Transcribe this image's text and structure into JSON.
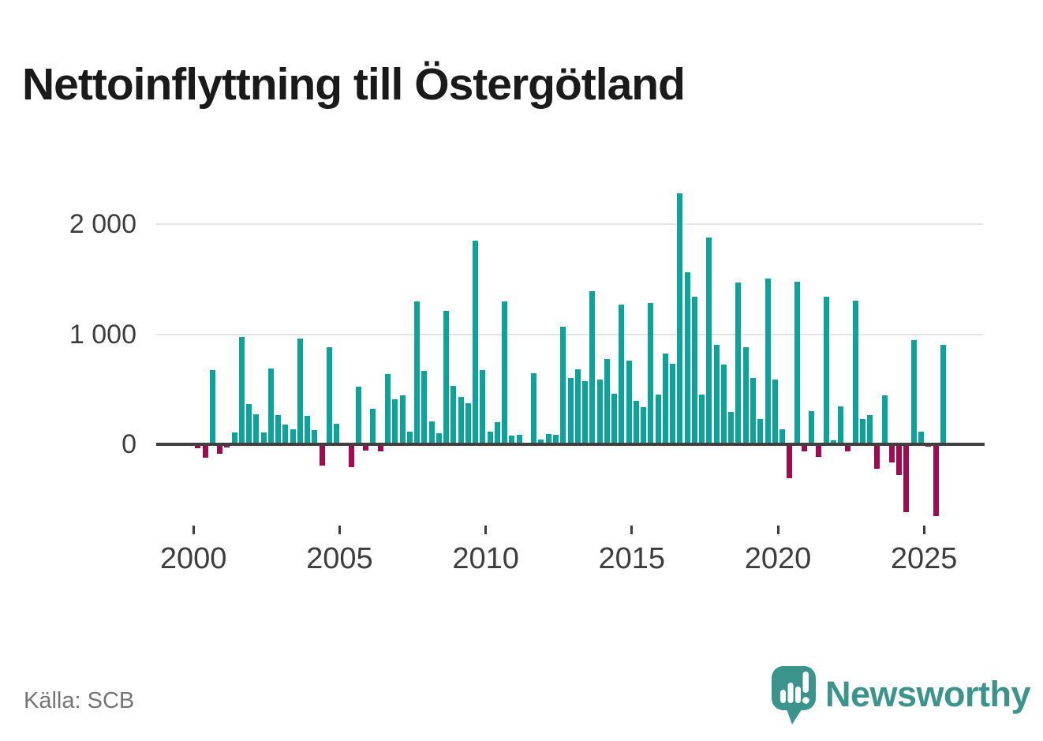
{
  "title": "Nettoinflyttning till Östergötland",
  "source": "Källa: SCB",
  "brand": {
    "name": "Newsworthy",
    "icon": "newsworthy-speech-bubble-chart-icon"
  },
  "colors": {
    "positive": "#0ca39a",
    "negative": "#a00b50",
    "grid": "#e4e4e4",
    "axis": "#3f3f3f",
    "tick": "#3c3c3c",
    "label": "#3d3d3d",
    "title": "#1a1a1a",
    "source_gray": "#757575",
    "brand_teal": "#3a948c",
    "background": "#ffffff"
  },
  "chart_data": {
    "type": "bar",
    "title": "Nettoinflyttning till Östergötland",
    "xlabel": "",
    "ylabel": "",
    "x_unit": "quarter",
    "grid": "horizontal",
    "legend": "none",
    "ylim": [
      -700,
      2400
    ],
    "y_ticks": [
      0,
      1000,
      2000
    ],
    "y_tick_labels": [
      "0",
      "1 000",
      "2 000"
    ],
    "x_tick_years": [
      2000,
      2005,
      2010,
      2015,
      2020,
      2025
    ],
    "x_tick_labels": [
      "2000",
      "2005",
      "2010",
      "2015",
      "2020",
      "2025"
    ],
    "quarters": [
      "2000Q1",
      "2000Q2",
      "2000Q3",
      "2000Q4",
      "2001Q1",
      "2001Q2",
      "2001Q3",
      "2001Q4",
      "2002Q1",
      "2002Q2",
      "2002Q3",
      "2002Q4",
      "2003Q1",
      "2003Q2",
      "2003Q3",
      "2003Q4",
      "2004Q1",
      "2004Q2",
      "2004Q3",
      "2004Q4",
      "2005Q1",
      "2005Q2",
      "2005Q3",
      "2005Q4",
      "2006Q1",
      "2006Q2",
      "2006Q3",
      "2006Q4",
      "2007Q1",
      "2007Q2",
      "2007Q3",
      "2007Q4",
      "2008Q1",
      "2008Q2",
      "2008Q3",
      "2008Q4",
      "2009Q1",
      "2009Q2",
      "2009Q3",
      "2009Q4",
      "2010Q1",
      "2010Q2",
      "2010Q3",
      "2010Q4",
      "2011Q1",
      "2011Q2",
      "2011Q3",
      "2011Q4",
      "2012Q1",
      "2012Q2",
      "2012Q3",
      "2012Q4",
      "2013Q1",
      "2013Q2",
      "2013Q3",
      "2013Q4",
      "2014Q1",
      "2014Q2",
      "2014Q3",
      "2014Q4",
      "2015Q1",
      "2015Q2",
      "2015Q3",
      "2015Q4",
      "2016Q1",
      "2016Q2",
      "2016Q3",
      "2016Q4",
      "2017Q1",
      "2017Q2",
      "2017Q3",
      "2017Q4",
      "2018Q1",
      "2018Q2",
      "2018Q3",
      "2018Q4",
      "2019Q1",
      "2019Q2",
      "2019Q3",
      "2019Q4",
      "2020Q1",
      "2020Q2",
      "2020Q3",
      "2020Q4",
      "2021Q1",
      "2021Q2",
      "2021Q3",
      "2021Q4",
      "2022Q1",
      "2022Q2",
      "2022Q3",
      "2022Q4",
      "2023Q1",
      "2023Q2",
      "2023Q3",
      "2023Q4",
      "2024Q1",
      "2024Q2",
      "2024Q3",
      "2024Q4",
      "2025Q1",
      "2025Q2",
      "2025Q3"
    ],
    "values": [
      -34,
      -120,
      674,
      -88,
      -29,
      110,
      977,
      363,
      270,
      108,
      690,
      265,
      179,
      136,
      960,
      256,
      131,
      -195,
      884,
      186,
      0,
      -205,
      523,
      -60,
      320,
      -68,
      638,
      409,
      447,
      117,
      1295,
      669,
      208,
      100,
      1211,
      530,
      428,
      375,
      1850,
      674,
      112,
      203,
      1300,
      76,
      84,
      0,
      645,
      45,
      96,
      85,
      1070,
      600,
      678,
      575,
      1391,
      585,
      775,
      460,
      1271,
      760,
      396,
      340,
      1283,
      452,
      824,
      733,
      2282,
      1565,
      1338,
      452,
      1881,
      901,
      722,
      292,
      1470,
      882,
      602,
      227,
      1505,
      585,
      136,
      -306,
      1479,
      -67,
      299,
      -115,
      1338,
      36,
      347,
      -67,
      1302,
      232,
      268,
      -222,
      442,
      -162,
      -280,
      -619,
      949,
      115,
      -24,
      -650,
      906
    ]
  }
}
